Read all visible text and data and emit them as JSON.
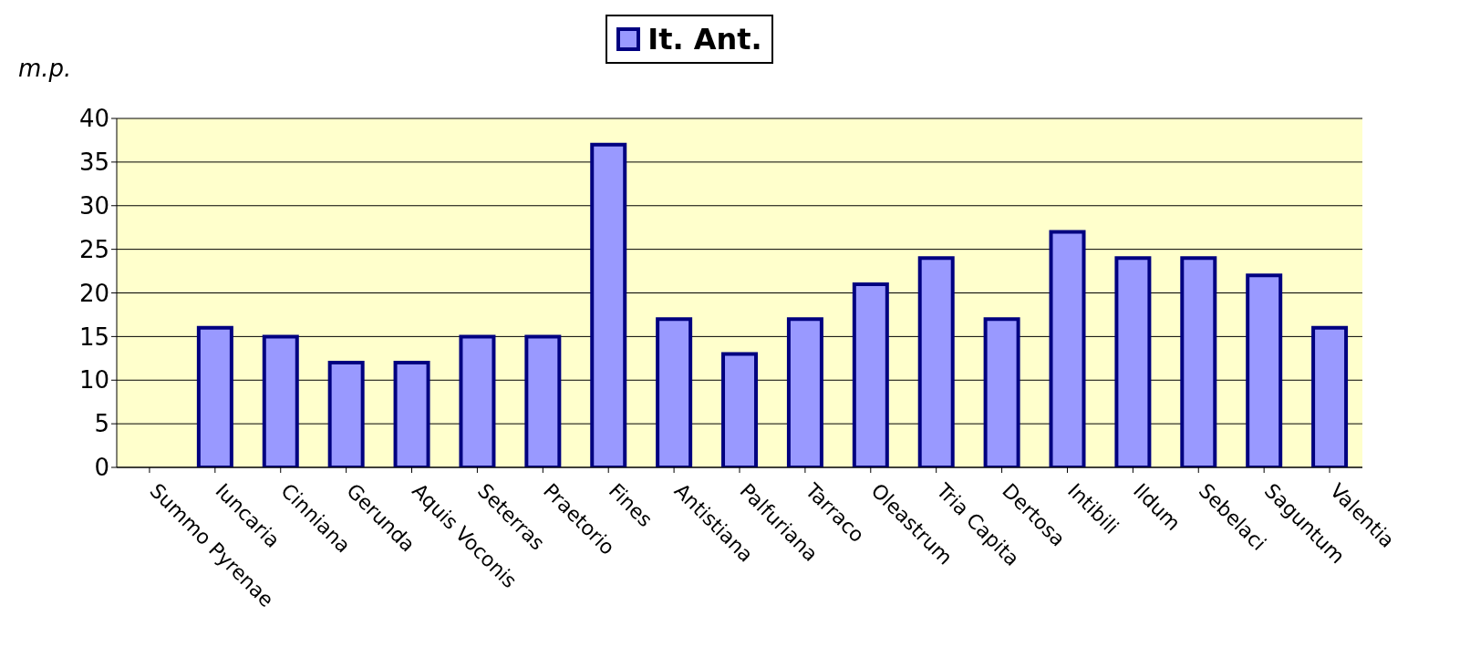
{
  "chart_data": {
    "type": "bar",
    "ylabel": "m.p.",
    "categories": [
      "Summo Pyrenae",
      "Iuncaria",
      "Cinniana",
      "Gerunda",
      "Aquis Voconis",
      "Seterras",
      "Praetorio",
      "Fines",
      "Antistiana",
      "Palfuriana",
      "Tarraco",
      "Oleastrum",
      "Tria Capita",
      "Dertosa",
      "Intibili",
      "Ildum",
      "Sebelaci",
      "Saguntum",
      "Valentia"
    ],
    "series": [
      {
        "name": "It. Ant.",
        "color": "#9999ff",
        "values": [
          null,
          16,
          15,
          12,
          12,
          15,
          15,
          37,
          17,
          13,
          17,
          21,
          24,
          17,
          27,
          24,
          24,
          22,
          16
        ]
      }
    ],
    "ylim": [
      0,
      40
    ],
    "yticks": [
      0,
      5,
      10,
      15,
      20,
      25,
      30,
      35,
      40
    ],
    "grid": "y",
    "legend": "top"
  }
}
